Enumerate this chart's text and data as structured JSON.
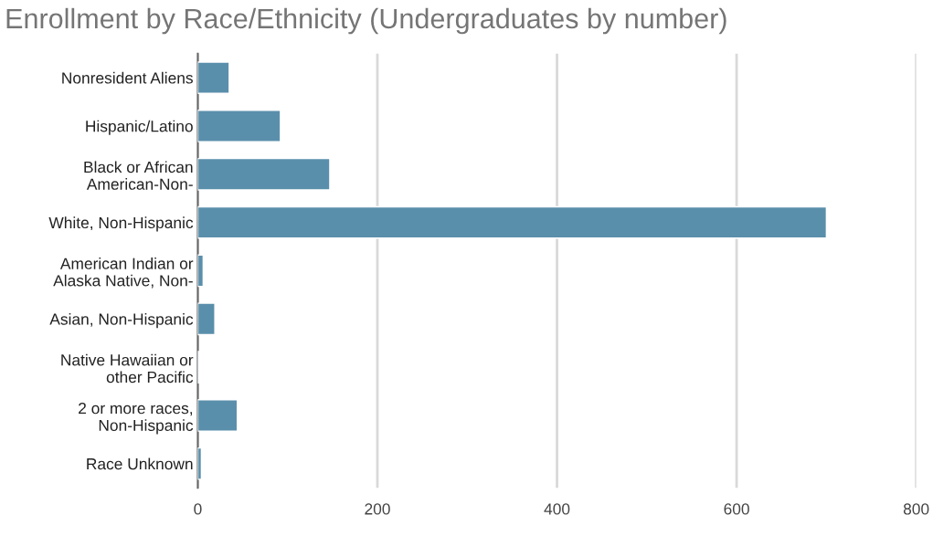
{
  "chart_data": {
    "type": "bar",
    "orientation": "horizontal",
    "title": "Enrollment by Race/Ethnicity (Undergraduates by number)",
    "categories": [
      "Nonresident Aliens",
      "Hispanic/Latino",
      "Black or African\nAmerican-Non-",
      "White, Non-Hispanic",
      "American Indian or\nAlaska Native, Non-",
      "Asian, Non-Hispanic",
      "Native Hawaiian or\nother Pacific",
      "2 or more races,\nNon-Hispanic",
      "Race Unknown"
    ],
    "values": [
      35,
      92,
      147,
      700,
      6,
      19,
      1,
      44,
      4
    ],
    "color": "#5a8fab",
    "xlim": [
      0,
      800
    ],
    "xticks": [
      0,
      200,
      400,
      600,
      800
    ],
    "grid": "x",
    "legend": false
  }
}
